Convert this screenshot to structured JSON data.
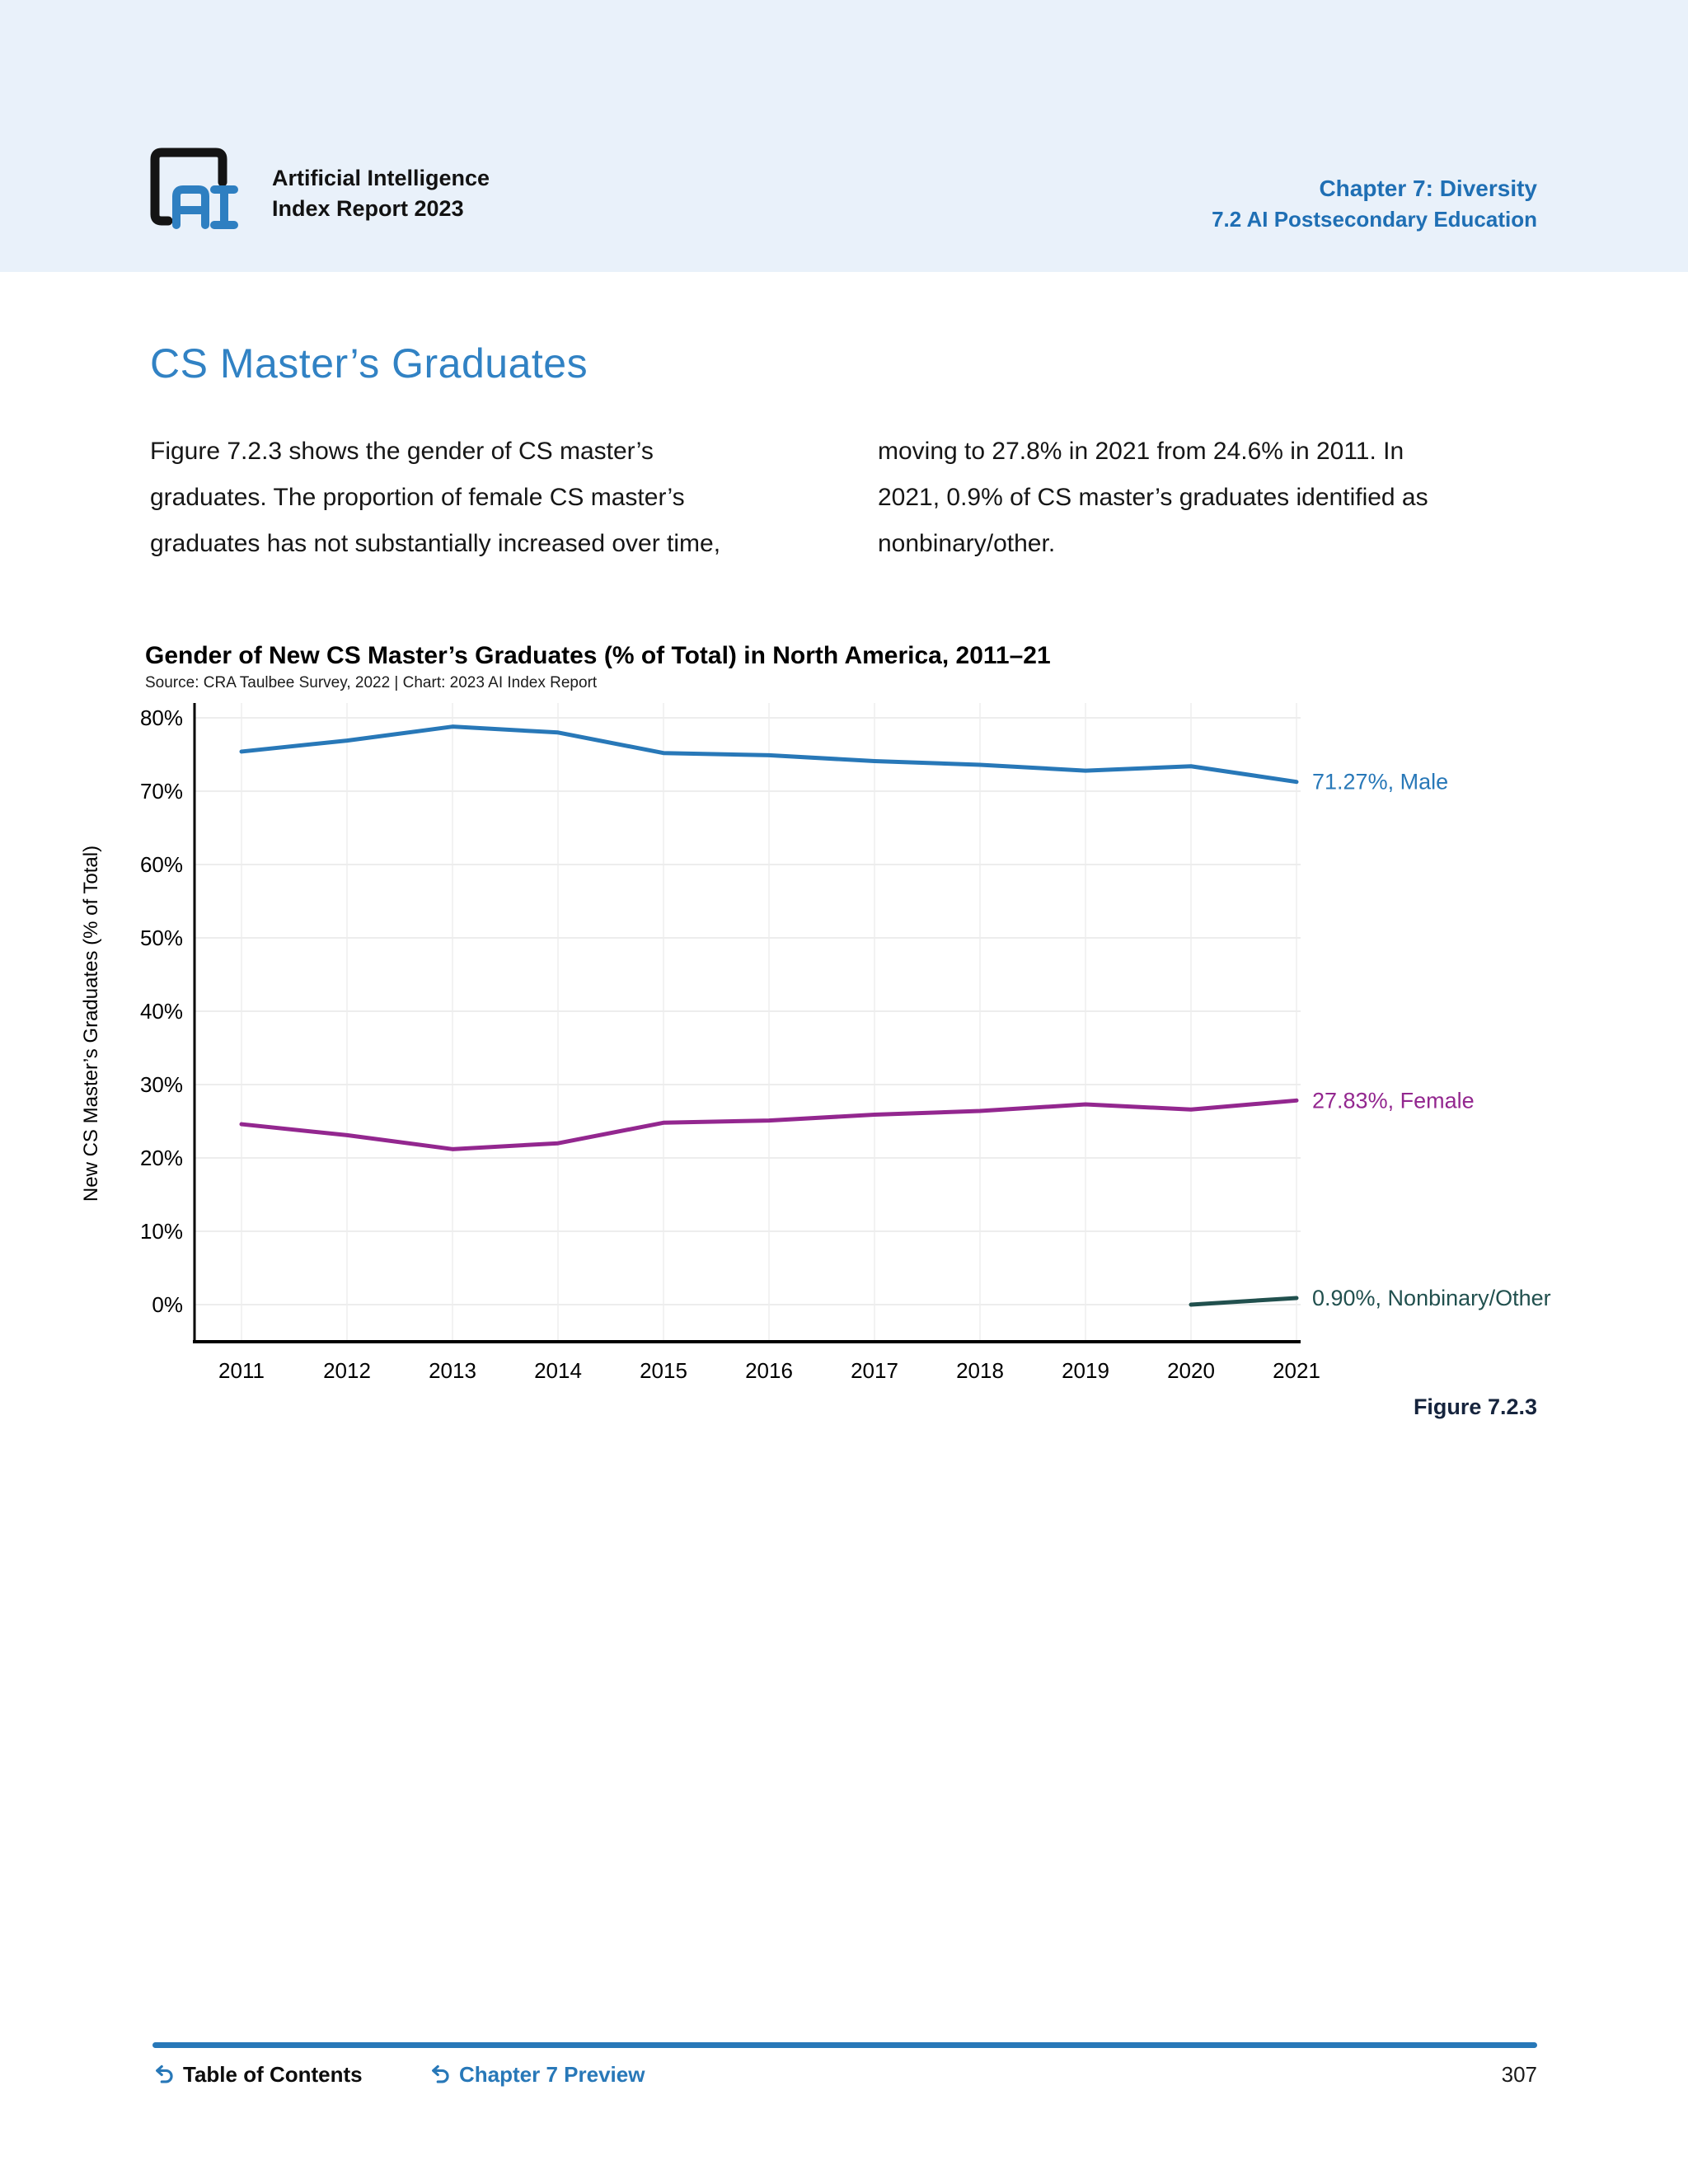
{
  "header": {
    "brand_line1": "Artificial Intelligence",
    "brand_line2": "Index Report 2023",
    "chapter": "Chapter 7: Diversity",
    "section": "7.2 AI Postsecondary Education",
    "accent_color": "#1f6fb4",
    "band_color": "#e9f1fa"
  },
  "article": {
    "title": "CS Master’s Graduates",
    "title_color": "#3182c4",
    "col_left": [
      "Figure 7.2.3 shows the gender of CS master’s",
      "graduates. The proportion of female CS master’s",
      "graduates has not substantially increased over time,"
    ],
    "col_right": [
      "moving to 27.8% in 2021 from 24.6% in 2011. In",
      "2021, 0.9% of CS master’s graduates identified as",
      "nonbinary/other."
    ]
  },
  "chart_data": {
    "type": "line",
    "title": "Gender of New CS Master’s Graduates (% of Total) in North America, 2011–21",
    "source": "Source: CRA Taulbee Survey, 2022 | Chart: 2023 AI Index Report",
    "ylabel": "New CS Master’s Graduates (% of Total)",
    "figure_label": "Figure 7.2.3",
    "x": [
      2011,
      2012,
      2013,
      2014,
      2015,
      2016,
      2017,
      2018,
      2019,
      2020,
      2021
    ],
    "ylim": [
      0,
      80
    ],
    "ytick_step": 10,
    "ytick_suffix": "%",
    "grid": true,
    "grid_color_h": "#ededed",
    "grid_color_v": "#f2f2f2",
    "axis_color": "#000000",
    "legend_position": "end-of-line-labels",
    "series": [
      {
        "name": "Male",
        "color": "#2878b8",
        "values": [
          75.4,
          76.9,
          78.8,
          78.0,
          75.2,
          74.9,
          74.1,
          73.6,
          72.8,
          73.4,
          71.27
        ],
        "end_label": "71.27%, Male"
      },
      {
        "name": "Female",
        "color": "#93278f",
        "values": [
          24.6,
          23.1,
          21.2,
          22.0,
          24.8,
          25.1,
          25.9,
          26.4,
          27.3,
          26.6,
          27.83
        ],
        "end_label": "27.83%, Female"
      },
      {
        "name": "Nonbinary/Other",
        "color": "#21504e",
        "values": [
          null,
          null,
          null,
          null,
          null,
          null,
          null,
          null,
          null,
          0.0,
          0.9
        ],
        "end_label": "0.90%, Nonbinary/Other"
      }
    ]
  },
  "footer": {
    "toc_label": "Table of Contents",
    "preview_label": "Chapter 7 Preview",
    "page_number": "307",
    "rule_color": "#2878b8"
  }
}
